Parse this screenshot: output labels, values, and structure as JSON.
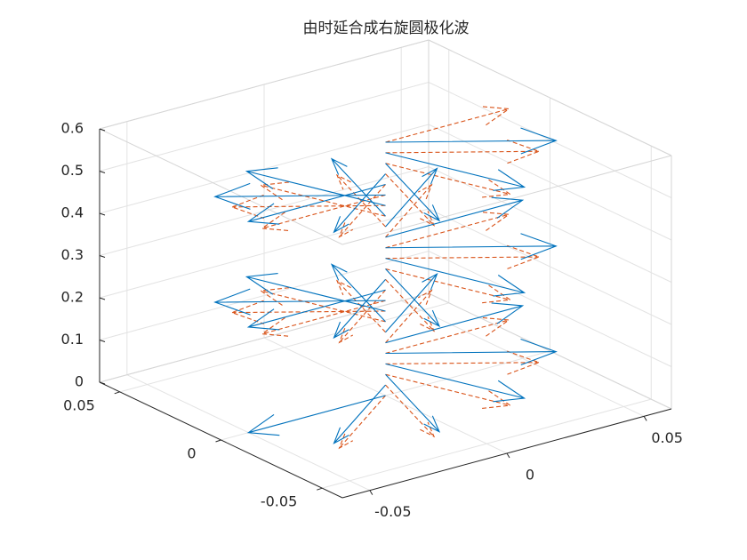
{
  "chart_data": {
    "type": "quiver3",
    "title": "由时延合成右旋圆极化波",
    "xlim": [
      -0.06,
      0.06
    ],
    "ylim": [
      -0.06,
      0.06
    ],
    "zlim": [
      0,
      0.6
    ],
    "xticks": [
      -0.05,
      0,
      0.05
    ],
    "yticks": [
      -0.05,
      0,
      0.05
    ],
    "zticks": [
      0,
      0.1,
      0.2,
      0.3,
      0.4,
      0.5,
      0.6
    ],
    "grid": true,
    "box": true,
    "series": [
      {
        "color": "#D95319",
        "line_style": "dashed",
        "x": [
          -0.0364,
          -0.0139,
          0.0139,
          0.0364,
          0.045,
          0.0364,
          0.0139,
          -0.0139,
          -0.0364,
          -0.045,
          -0.0364,
          -0.0139,
          0.0139,
          0.0364,
          0.045,
          0.0364,
          0.0139,
          -0.0139,
          -0.0364,
          -0.045,
          -0.0364,
          -0.0139,
          0.0139,
          0.0364,
          0.045
        ],
        "y": [
          -0.0265,
          -0.0428,
          -0.0428,
          -0.0265,
          0,
          0.0265,
          0.0428,
          0.0428,
          0.0265,
          0,
          -0.0265,
          -0.0428,
          -0.0428,
          -0.0265,
          0,
          0.0265,
          0.0428,
          0.0428,
          0.0265,
          0,
          -0.0265,
          -0.0428,
          -0.0428,
          -0.0265,
          0
        ],
        "z": [
          0,
          0.025,
          0.05,
          0.075,
          0.1,
          0.125,
          0.15,
          0.175,
          0.2,
          0.225,
          0.25,
          0.275,
          0.3,
          0.325,
          0.35,
          0.375,
          0.4,
          0.425,
          0.45,
          0.475,
          0.5,
          0.525,
          0.55,
          0.575,
          0.6
        ]
      },
      {
        "color": "#0072BD",
        "line_style": "solid",
        "x": [
          -0.05,
          -0.0405,
          -0.0155,
          0.0155,
          0.0405,
          0.05,
          0.0405,
          0.0155,
          -0.0155,
          -0.0405,
          -0.05,
          -0.0405,
          -0.0155,
          0.0155,
          0.0405,
          0.05,
          0.0405,
          0.0155,
          -0.0155,
          -0.0405,
          -0.05,
          -0.0405,
          -0.0155,
          0.0155,
          0.0405
        ],
        "y": [
          0,
          -0.0294,
          -0.0476,
          -0.0476,
          -0.0294,
          0,
          0.0294,
          0.0476,
          0.0476,
          0.0294,
          0,
          -0.0294,
          -0.0476,
          -0.0476,
          -0.0294,
          0,
          0.0294,
          0.0476,
          0.0476,
          0.0294,
          0,
          -0.0294,
          -0.0476,
          -0.0476,
          -0.0294
        ],
        "z": [
          0,
          0.025,
          0.05,
          0.075,
          0.1,
          0.125,
          0.15,
          0.175,
          0.2,
          0.225,
          0.25,
          0.275,
          0.3,
          0.325,
          0.35,
          0.375,
          0.4,
          0.425,
          0.45,
          0.475,
          0.5,
          0.525,
          0.55,
          0.575,
          0.6
        ]
      }
    ]
  }
}
